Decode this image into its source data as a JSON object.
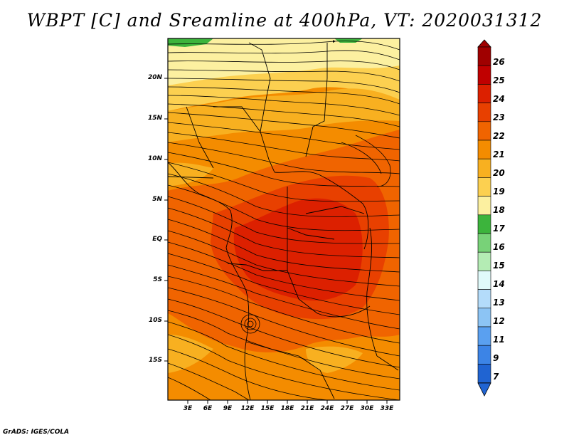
{
  "title": "WBPT [C] and Sreamline at 400hPa, VT: 2020031312",
  "credit": "GrADS: IGES/COLA",
  "map": {
    "lat_labels": [
      "20N",
      "15N",
      "10N",
      "5N",
      "EQ",
      "5S",
      "10S",
      "15S"
    ],
    "lon_labels": [
      "3E",
      "6E",
      "9E",
      "12E",
      "15E",
      "18E",
      "21E",
      "24E",
      "27E",
      "30E",
      "33E"
    ]
  },
  "colorbar": {
    "labels": [
      "26",
      "25",
      "24",
      "23",
      "22",
      "21",
      "20",
      "19",
      "18",
      "17",
      "16",
      "15",
      "14",
      "13",
      "12",
      "11",
      "9",
      "7"
    ],
    "colors": [
      "#a00000",
      "#c00000",
      "#dc2000",
      "#e84000",
      "#f06400",
      "#f48c00",
      "#f8b020",
      "#fcd050",
      "#fcf0a0",
      "#3cb43c",
      "#78d278",
      "#b4ecb4",
      "#e0fafa",
      "#b4dcfa",
      "#8cc4f4",
      "#5aa0f0",
      "#3c84e6",
      "#2064d2"
    ]
  }
}
